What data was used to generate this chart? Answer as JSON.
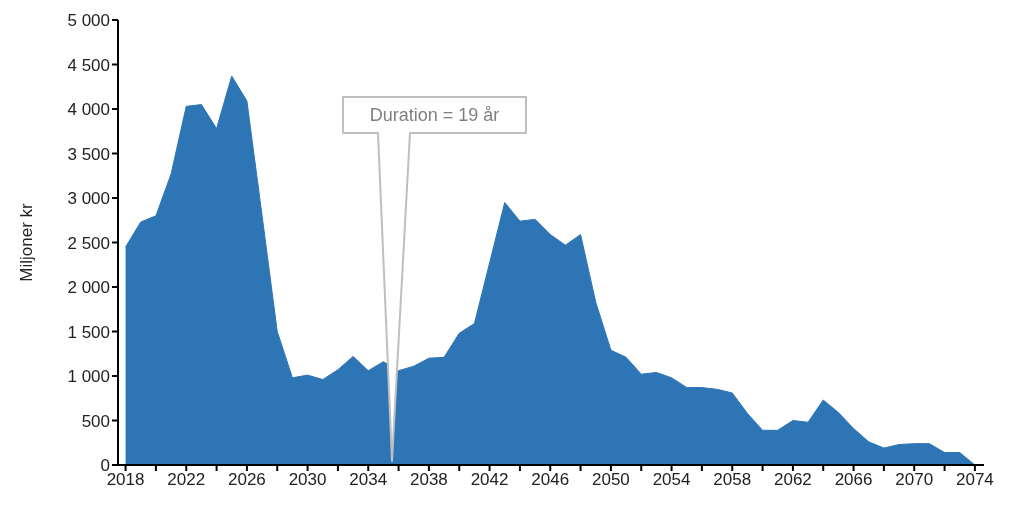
{
  "chart_data": {
    "type": "area",
    "ylabel": "Miljoner kr",
    "x": [
      2018,
      2019,
      2020,
      2021,
      2022,
      2023,
      2024,
      2025,
      2026,
      2027,
      2028,
      2029,
      2030,
      2031,
      2032,
      2033,
      2034,
      2035,
      2036,
      2037,
      2038,
      2039,
      2040,
      2041,
      2042,
      2043,
      2044,
      2045,
      2046,
      2047,
      2048,
      2049,
      2050,
      2051,
      2052,
      2053,
      2054,
      2055,
      2056,
      2057,
      2058,
      2059,
      2060,
      2061,
      2062,
      2063,
      2064,
      2065,
      2066,
      2067,
      2068,
      2069,
      2070,
      2071,
      2072,
      2073,
      2074
    ],
    "series": [
      {
        "color": "#2e75b6",
        "values": [
          2450,
          2730,
          2800,
          3270,
          4030,
          4050,
          3780,
          4370,
          4090,
          2800,
          1500,
          980,
          1010,
          960,
          1070,
          1220,
          1060,
          1160,
          1060,
          1110,
          1200,
          1210,
          1480,
          1590,
          2270,
          2950,
          2740,
          2760,
          2590,
          2470,
          2590,
          1830,
          1290,
          1210,
          1020,
          1040,
          980,
          870,
          870,
          850,
          810,
          580,
          390,
          390,
          500,
          480,
          730,
          590,
          410,
          260,
          190,
          230,
          240,
          240,
          140,
          140,
          0
        ]
      }
    ],
    "xlim": [
      2017.5,
      2074.6
    ],
    "xticks": [
      2018,
      {
        "value": 2020,
        "label": null
      },
      2022,
      {
        "value": 2024,
        "label": null
      },
      2026,
      {
        "value": 2028,
        "label": null
      },
      2030,
      {
        "value": 2032,
        "label": null
      },
      2034,
      {
        "value": 2036,
        "label": null
      },
      2038,
      {
        "value": 2040,
        "label": null
      },
      2042,
      {
        "value": 2044,
        "label": null
      },
      2046,
      {
        "value": 2048,
        "label": null
      },
      2050,
      {
        "value": 2052,
        "label": null
      },
      2054,
      {
        "value": 2056,
        "label": null
      },
      2058,
      {
        "value": 2060,
        "label": null
      },
      2062,
      {
        "value": 2064,
        "label": null
      },
      2066,
      {
        "value": 2068,
        "label": null
      },
      2070,
      {
        "value": 2072,
        "label": null
      },
      2074
    ],
    "ylim": [
      0,
      5000
    ],
    "yticks": [
      0,
      500,
      {
        "value": 1000,
        "label": "1 000"
      },
      {
        "value": 1500,
        "label": "1 500"
      },
      {
        "value": 2000,
        "label": "2 000"
      },
      {
        "value": 2500,
        "label": "2 500"
      },
      {
        "value": 3000,
        "label": "3 000"
      },
      {
        "value": 3500,
        "label": "3 500"
      },
      {
        "value": 4000,
        "label": "4 000"
      },
      {
        "value": 4500,
        "label": "4 500"
      },
      {
        "value": 5000,
        "label": "5 000"
      }
    ],
    "grid": false,
    "legend": false,
    "annotations": [
      "Duration = 19 år"
    ]
  }
}
